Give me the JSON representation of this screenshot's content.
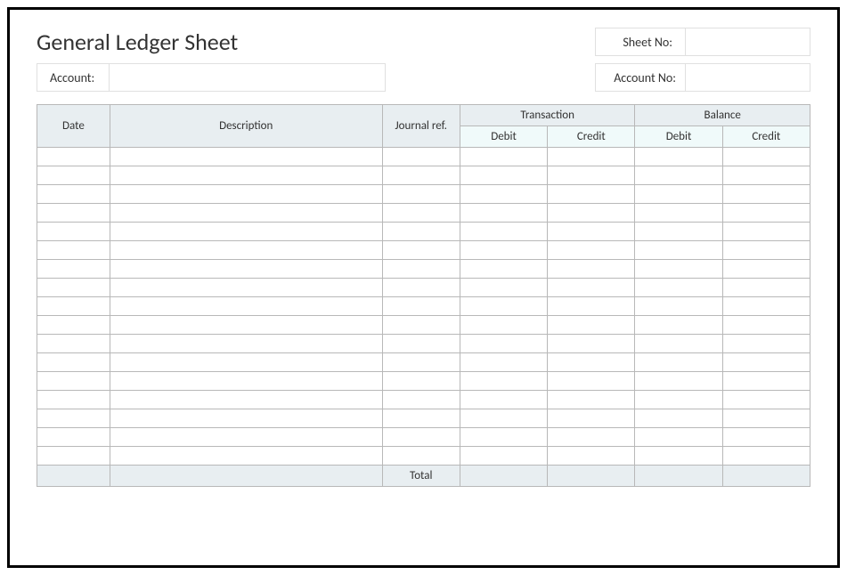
{
  "title": "General Ledger Sheet",
  "header": {
    "sheet_no_label": "Sheet No:",
    "sheet_no_value": "",
    "account_label": "Account:",
    "account_value": "",
    "account_no_label": "Account No:",
    "account_no_value": ""
  },
  "table": {
    "columns": {
      "date": "Date",
      "description": "Description",
      "journal_ref": "Journal ref.",
      "transaction": "Transaction",
      "balance": "Balance",
      "debit": "Debit",
      "credit": "Credit"
    },
    "col_widths": {
      "date": 75,
      "description": 280,
      "journal_ref": 80,
      "amount": 90
    },
    "header_bg": "#e8eef1",
    "subheader_bg": "#f0fafa",
    "border_color": "#b8b8b8",
    "row_bg": "#ffffff",
    "row_count": 17,
    "rows": [
      {
        "date": "",
        "description": "",
        "journal_ref": "",
        "t_debit": "",
        "t_credit": "",
        "b_debit": "",
        "b_credit": ""
      },
      {
        "date": "",
        "description": "",
        "journal_ref": "",
        "t_debit": "",
        "t_credit": "",
        "b_debit": "",
        "b_credit": ""
      },
      {
        "date": "",
        "description": "",
        "journal_ref": "",
        "t_debit": "",
        "t_credit": "",
        "b_debit": "",
        "b_credit": ""
      },
      {
        "date": "",
        "description": "",
        "journal_ref": "",
        "t_debit": "",
        "t_credit": "",
        "b_debit": "",
        "b_credit": ""
      },
      {
        "date": "",
        "description": "",
        "journal_ref": "",
        "t_debit": "",
        "t_credit": "",
        "b_debit": "",
        "b_credit": ""
      },
      {
        "date": "",
        "description": "",
        "journal_ref": "",
        "t_debit": "",
        "t_credit": "",
        "b_debit": "",
        "b_credit": ""
      },
      {
        "date": "",
        "description": "",
        "journal_ref": "",
        "t_debit": "",
        "t_credit": "",
        "b_debit": "",
        "b_credit": ""
      },
      {
        "date": "",
        "description": "",
        "journal_ref": "",
        "t_debit": "",
        "t_credit": "",
        "b_debit": "",
        "b_credit": ""
      },
      {
        "date": "",
        "description": "",
        "journal_ref": "",
        "t_debit": "",
        "t_credit": "",
        "b_debit": "",
        "b_credit": ""
      },
      {
        "date": "",
        "description": "",
        "journal_ref": "",
        "t_debit": "",
        "t_credit": "",
        "b_debit": "",
        "b_credit": ""
      },
      {
        "date": "",
        "description": "",
        "journal_ref": "",
        "t_debit": "",
        "t_credit": "",
        "b_debit": "",
        "b_credit": ""
      },
      {
        "date": "",
        "description": "",
        "journal_ref": "",
        "t_debit": "",
        "t_credit": "",
        "b_debit": "",
        "b_credit": ""
      },
      {
        "date": "",
        "description": "",
        "journal_ref": "",
        "t_debit": "",
        "t_credit": "",
        "b_debit": "",
        "b_credit": ""
      },
      {
        "date": "",
        "description": "",
        "journal_ref": "",
        "t_debit": "",
        "t_credit": "",
        "b_debit": "",
        "b_credit": ""
      },
      {
        "date": "",
        "description": "",
        "journal_ref": "",
        "t_debit": "",
        "t_credit": "",
        "b_debit": "",
        "b_credit": ""
      },
      {
        "date": "",
        "description": "",
        "journal_ref": "",
        "t_debit": "",
        "t_credit": "",
        "b_debit": "",
        "b_credit": ""
      },
      {
        "date": "",
        "description": "",
        "journal_ref": "",
        "t_debit": "",
        "t_credit": "",
        "b_debit": "",
        "b_credit": ""
      }
    ],
    "total_label": "Total",
    "totals": {
      "t_debit": "",
      "t_credit": "",
      "b_debit": "",
      "b_credit": ""
    }
  },
  "style": {
    "outer_border_color": "#000000",
    "background": "#ffffff",
    "title_fontsize": 26,
    "label_fontsize": 14,
    "cell_fontsize": 13,
    "field_border": "#e0e0e0"
  }
}
